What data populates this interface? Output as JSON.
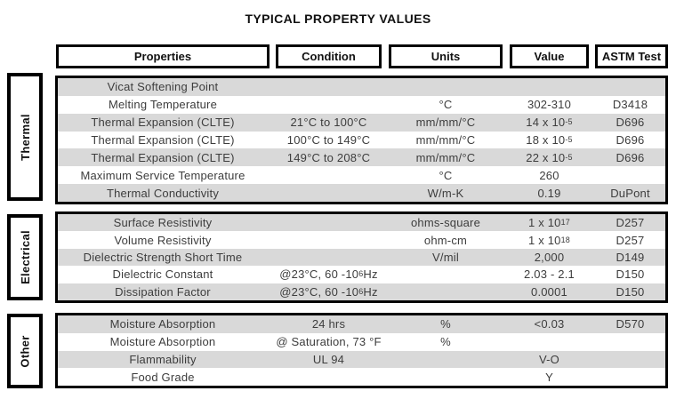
{
  "title": "TYPICAL PROPERTY VALUES",
  "columns": [
    "Properties",
    "Condition",
    "Units",
    "Value",
    "ASTM Test"
  ],
  "colors": {
    "row_alt": "#d9d9d9",
    "body_text": "#3d3d3d",
    "border": "#000000"
  },
  "sections": [
    {
      "label": "Thermal",
      "rows": [
        {
          "property": "Vicat Softening Point",
          "condition": "",
          "units": "",
          "value": "",
          "astm": ""
        },
        {
          "property": "Melting Temperature",
          "condition": "",
          "units": "°C",
          "value": "302-310",
          "astm": "D3418"
        },
        {
          "property": "Thermal Expansion (CLTE)",
          "condition": "21°C to 100°C",
          "units": "mm/mm/°C",
          "value": [
            {
              "t": "14 x 10"
            },
            {
              "s": "-5"
            }
          ],
          "astm": "D696"
        },
        {
          "property": "Thermal Expansion (CLTE)",
          "condition": "100°C to 149°C",
          "units": "mm/mm/°C",
          "value": [
            {
              "t": "18 x 10"
            },
            {
              "s": "-5"
            }
          ],
          "astm": "D696"
        },
        {
          "property": "Thermal Expansion (CLTE)",
          "condition": "149°C to 208°C",
          "units": "mm/mm/°C",
          "value": [
            {
              "t": "22 x 10"
            },
            {
              "s": "-5"
            }
          ],
          "astm": "D696"
        },
        {
          "property": "Maximum Service Temperature",
          "condition": "",
          "units": "°C",
          "value": "260",
          "astm": ""
        },
        {
          "property": "Thermal Conductivity",
          "condition": "",
          "units": "W/m-K",
          "value": "0.19",
          "astm": "DuPont"
        }
      ]
    },
    {
      "label": "Electrical",
      "rows": [
        {
          "property": "Surface Resistivity",
          "condition": "",
          "units": "ohms-square",
          "value": [
            {
              "t": "1 x 10"
            },
            {
              "s": "17"
            }
          ],
          "astm": "D257"
        },
        {
          "property": "Volume Resistivity",
          "condition": "",
          "units": "ohm-cm",
          "value": [
            {
              "t": "1 x 10"
            },
            {
              "s": "18"
            }
          ],
          "astm": "D257"
        },
        {
          "property": "Dielectric Strength Short Time",
          "condition": "",
          "units": "V/mil",
          "value": "2,000",
          "astm": "D149"
        },
        {
          "property": "Dielectric Constant",
          "condition": [
            {
              "t": "@23°C, 60 -10"
            },
            {
              "s": "6"
            },
            {
              "t": " Hz"
            }
          ],
          "units": "",
          "value": "2.03 - 2.1",
          "astm": "D150"
        },
        {
          "property": "Dissipation Factor",
          "condition": [
            {
              "t": "@23°C, 60 -10"
            },
            {
              "s": "6"
            },
            {
              "t": " Hz"
            }
          ],
          "units": "",
          "value": "0.0001",
          "astm": "D150"
        }
      ]
    },
    {
      "label": "Other",
      "rows": [
        {
          "property": "Moisture Absorption",
          "condition": "24 hrs",
          "units": "%",
          "value": "<0.03",
          "astm": "D570"
        },
        {
          "property": "Moisture Absorption",
          "condition": "@ Saturation, 73 °F",
          "units": "%",
          "value": "",
          "astm": ""
        },
        {
          "property": "Flammability",
          "condition": "UL 94",
          "units": "",
          "value": "V-O",
          "astm": ""
        },
        {
          "property": "Food Grade",
          "condition": "",
          "units": "",
          "value": "Y",
          "astm": ""
        }
      ]
    }
  ]
}
